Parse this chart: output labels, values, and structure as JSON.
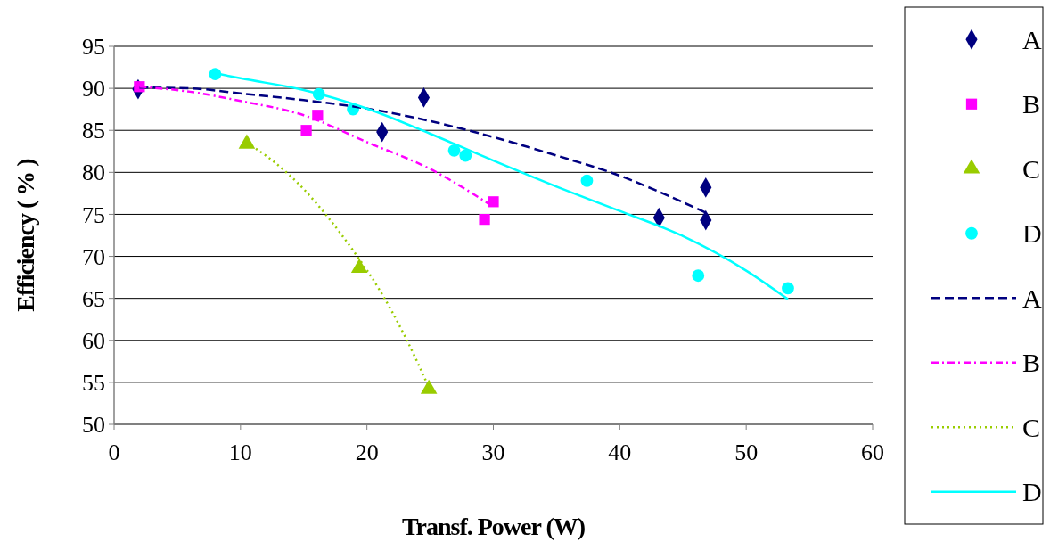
{
  "chart_data": {
    "type": "scatter",
    "xlabel": "Transf. Power (W)",
    "ylabel": "Efficiency ( % )",
    "xlim": [
      0,
      60
    ],
    "xticks": [
      0,
      10,
      20,
      30,
      40,
      50,
      60
    ],
    "ylim": [
      50,
      95
    ],
    "yticks": [
      50,
      55,
      60,
      65,
      70,
      75,
      80,
      85,
      90,
      95
    ],
    "grid": "y",
    "legend": "right",
    "series": [
      {
        "name": "A",
        "marker": "diamond",
        "color": "#000080",
        "x": [
          1.9,
          21.2,
          24.5,
          43.1,
          46.8,
          46.8
        ],
        "values": [
          89.9,
          84.8,
          88.9,
          74.6,
          78.2,
          74.3
        ]
      },
      {
        "name": "B",
        "marker": "square",
        "color": "#ff00ff",
        "x": [
          2.0,
          15.2,
          16.1,
          29.3,
          30.0
        ],
        "values": [
          90.2,
          85.0,
          86.8,
          74.4,
          76.5
        ]
      },
      {
        "name": "C",
        "marker": "triangle",
        "color": "#99cc00",
        "x": [
          10.5,
          19.4,
          24.9
        ],
        "values": [
          83.4,
          68.6,
          54.2
        ]
      },
      {
        "name": "D",
        "marker": "circle",
        "color": "#00ffff",
        "x": [
          8.0,
          16.2,
          18.9,
          26.9,
          27.8,
          37.4,
          46.2,
          53.3
        ],
        "values": [
          91.7,
          89.3,
          87.5,
          82.6,
          82.0,
          79.0,
          67.7,
          66.2
        ]
      },
      {
        "name": "A",
        "type": "line",
        "marker": "none",
        "line_style": "dashed",
        "color": "#000080",
        "x": [
          2,
          6,
          10,
          15,
          20,
          25,
          30,
          35,
          40,
          44,
          46.8
        ],
        "values": [
          90.1,
          90.0,
          89.4,
          88.6,
          87.6,
          86.1,
          84.2,
          82.0,
          79.6,
          77.1,
          75.2
        ]
      },
      {
        "name": "B",
        "type": "line",
        "marker": "none",
        "line_style": "dashdot",
        "color": "#ff00ff",
        "x": [
          2,
          6,
          10,
          15,
          20,
          25,
          30
        ],
        "values": [
          90.2,
          89.6,
          88.5,
          86.8,
          83.6,
          80.4,
          75.9
        ]
      },
      {
        "name": "C",
        "type": "line",
        "marker": "none",
        "line_style": "dotted",
        "color": "#99cc00",
        "x": [
          10.5,
          12,
          15,
          17,
          19,
          21,
          23,
          24.9
        ],
        "values": [
          83.5,
          82,
          78,
          74.5,
          70.5,
          66,
          60.5,
          54.4
        ]
      },
      {
        "name": "D",
        "type": "line",
        "marker": "none",
        "line_style": "solid",
        "color": "#00ffff",
        "x": [
          8,
          10,
          15,
          20,
          25,
          30,
          35,
          40,
          45,
          50,
          53.3
        ],
        "values": [
          91.8,
          91.2,
          89.8,
          87.6,
          84.6,
          81.4,
          78.3,
          75.4,
          72.4,
          68.3,
          64.9
        ]
      }
    ]
  }
}
